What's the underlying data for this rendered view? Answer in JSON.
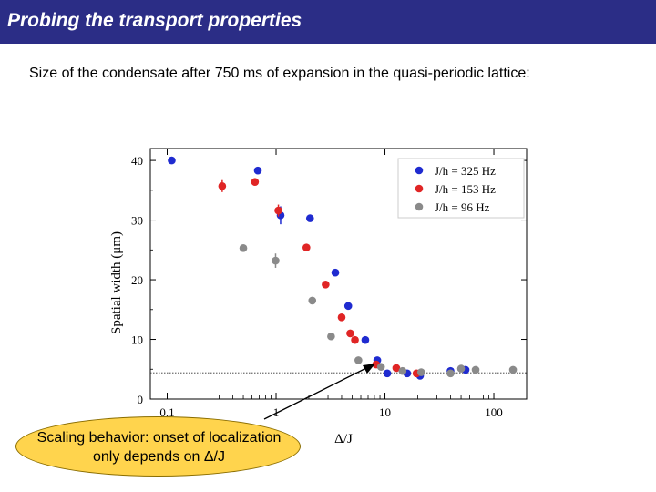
{
  "slide": {
    "title": "Probing the transport properties",
    "subtitle": "Size of the condensate after 750 ms of expansion in the quasi-periodic lattice:",
    "callout_line1": "Scaling behavior: onset of localization",
    "callout_line2": "only depends on Δ/J"
  },
  "colors": {
    "title_bg": "#2b2d86",
    "callout_fill": "#ffd44d"
  },
  "chart_data": {
    "type": "scatter",
    "title": "",
    "xlabel": "Δ/J",
    "ylabel": "Spatial width (μm)",
    "x_scale": "log",
    "xlim": [
      0.07,
      200
    ],
    "ylim": [
      0,
      42
    ],
    "x_ticks": [
      0.1,
      1,
      10,
      100
    ],
    "x_tick_labels": [
      "0.1",
      "1",
      "10",
      "100"
    ],
    "y_ticks": [
      0,
      10,
      20,
      30,
      40
    ],
    "y_tick_labels": [
      "0",
      "10",
      "20",
      "30",
      "40"
    ],
    "reference_line_y": 4.4,
    "legend_position": "top-right",
    "grid": false,
    "series": [
      {
        "name": "J/h = 325 Hz",
        "color": "#1f2bd0",
        "points": [
          {
            "x": 0.11,
            "y": 40
          },
          {
            "x": 0.68,
            "y": 38.3
          },
          {
            "x": 1.1,
            "y": 30.8,
            "err": 1.5
          },
          {
            "x": 2.05,
            "y": 30.3
          },
          {
            "x": 3.5,
            "y": 21.2
          },
          {
            "x": 4.6,
            "y": 15.6
          },
          {
            "x": 6.6,
            "y": 9.9
          },
          {
            "x": 8.5,
            "y": 6.5
          },
          {
            "x": 10.5,
            "y": 4.3
          },
          {
            "x": 16,
            "y": 4.3
          },
          {
            "x": 21,
            "y": 3.9
          },
          {
            "x": 40,
            "y": 4.7
          },
          {
            "x": 55,
            "y": 4.9
          }
        ]
      },
      {
        "name": "J/h = 153 Hz",
        "color": "#e02525",
        "points": [
          {
            "x": 0.32,
            "y": 35.7,
            "err": 1.0
          },
          {
            "x": 0.64,
            "y": 36.4
          },
          {
            "x": 1.05,
            "y": 31.6,
            "err": 1.0
          },
          {
            "x": 1.9,
            "y": 25.4
          },
          {
            "x": 2.85,
            "y": 19.2
          },
          {
            "x": 4.0,
            "y": 13.7
          },
          {
            "x": 4.8,
            "y": 11.0
          },
          {
            "x": 5.3,
            "y": 9.9
          },
          {
            "x": 8.3,
            "y": 5.8
          },
          {
            "x": 12.7,
            "y": 5.2
          },
          {
            "x": 19.5,
            "y": 4.3
          }
        ]
      },
      {
        "name": "J/h = 96 Hz",
        "color": "#8a8a8a",
        "points": [
          {
            "x": 0.5,
            "y": 25.3
          },
          {
            "x": 0.99,
            "y": 23.2,
            "err": 1.2
          },
          {
            "x": 2.15,
            "y": 16.5
          },
          {
            "x": 3.2,
            "y": 10.5
          },
          {
            "x": 5.7,
            "y": 6.5
          },
          {
            "x": 9.2,
            "y": 5.4
          },
          {
            "x": 14.5,
            "y": 4.7
          },
          {
            "x": 21.5,
            "y": 4.5
          },
          {
            "x": 40,
            "y": 4.3
          },
          {
            "x": 50,
            "y": 5.1
          },
          {
            "x": 68,
            "y": 4.9
          },
          {
            "x": 150,
            "y": 4.9
          }
        ]
      }
    ]
  }
}
